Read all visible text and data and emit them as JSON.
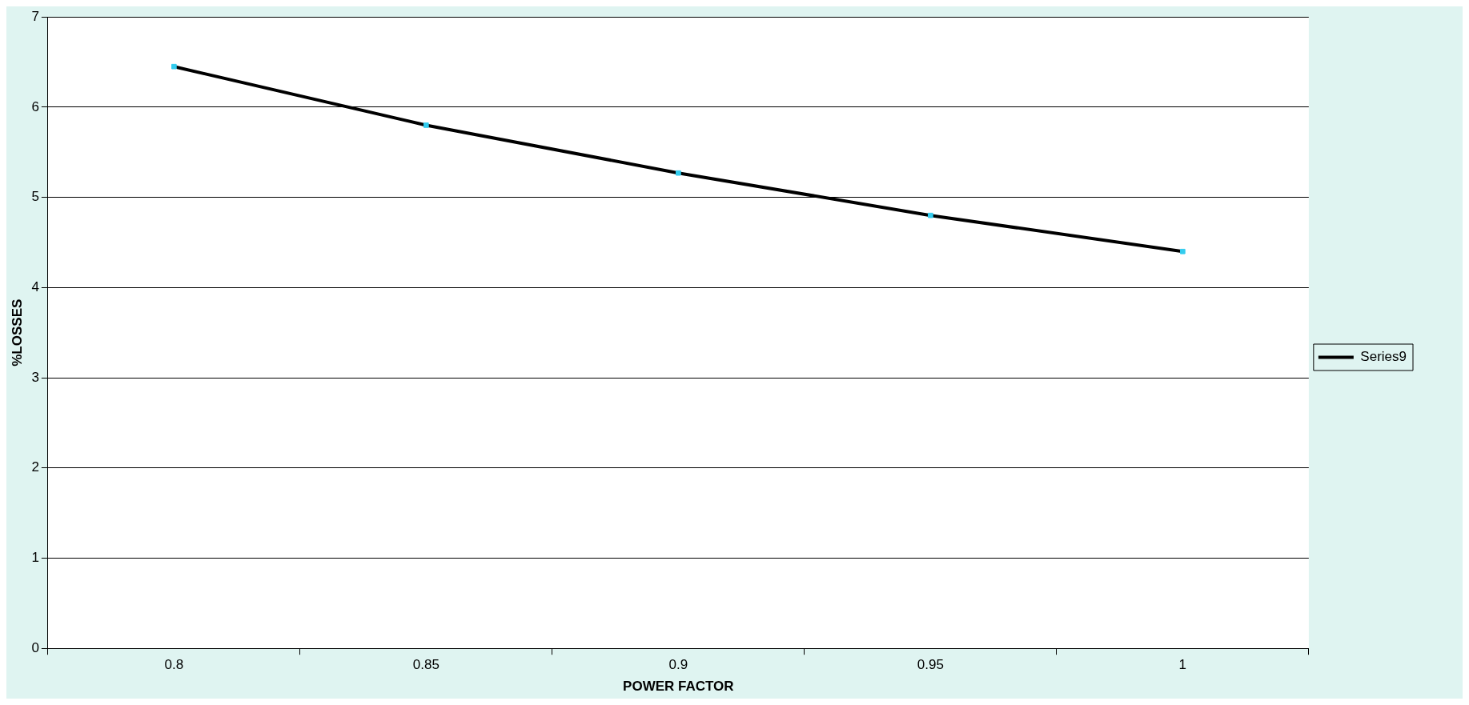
{
  "chart_data": {
    "type": "line",
    "xlabel": "POWER FACTOR",
    "ylabel": "%LOSSES",
    "categories": [
      "0.8",
      "0.85",
      "0.9",
      "0.95",
      "1"
    ],
    "series": [
      {
        "name": "Series9",
        "color": "#000000",
        "values": [
          6.45,
          5.8,
          5.27,
          4.8,
          4.4
        ]
      }
    ],
    "ylim": [
      0,
      7
    ],
    "yticks": [
      0,
      1,
      2,
      3,
      4,
      5,
      6,
      7
    ],
    "grid": "y",
    "legend": "right",
    "marker": "square",
    "line_style": "solid"
  }
}
